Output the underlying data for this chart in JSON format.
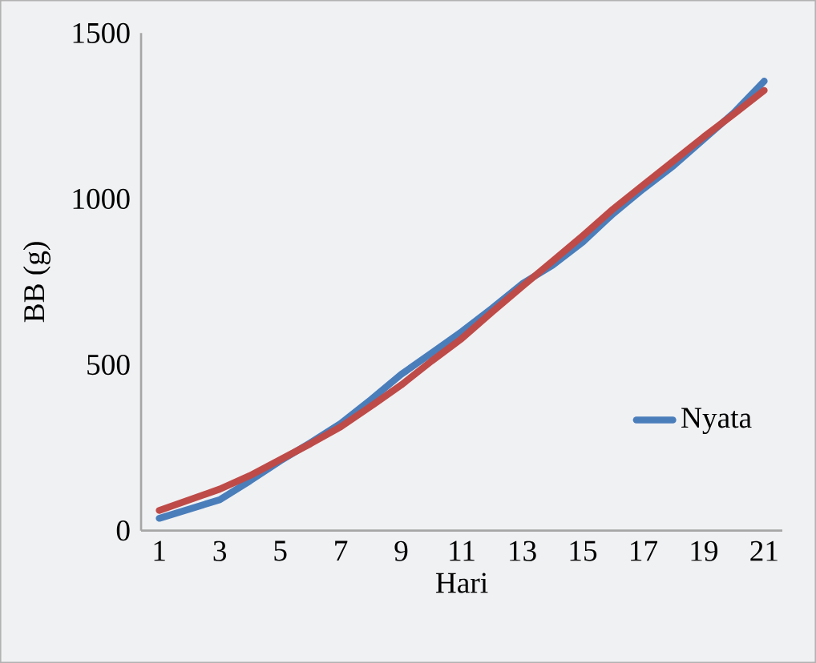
{
  "chart_data": {
    "type": "line",
    "xlabel": "Hari",
    "ylabel": "BB (g)",
    "categories": [
      "1",
      null,
      "3",
      null,
      "5",
      null,
      "7",
      null,
      "9",
      null,
      "11",
      null,
      "13",
      null,
      "15",
      null,
      "17",
      null,
      "19",
      null,
      "21"
    ],
    "series": [
      {
        "name": "Nyata",
        "color": "#4a7ebb",
        "values": [
          37,
          65,
          93,
          150,
          210,
          265,
          323,
          395,
          471,
          535,
          600,
          670,
          744,
          800,
          870,
          955,
          1030,
          1100,
          1180,
          1260,
          1355
        ]
      },
      {
        "color": "#be4b48",
        "values": [
          61,
          93,
          125,
          166,
          214,
          262,
          313,
          375,
          439,
          511,
          579,
          659,
          736,
          812,
          889,
          969,
          1042,
          1114,
          1187,
          1256,
          1327
        ]
      }
    ],
    "ylim": [
      0,
      1500
    ],
    "yticks": [
      0,
      500,
      1000,
      1500
    ],
    "grid": false,
    "legend": "bottom right",
    "marker": "none",
    "line_style": "solid"
  }
}
